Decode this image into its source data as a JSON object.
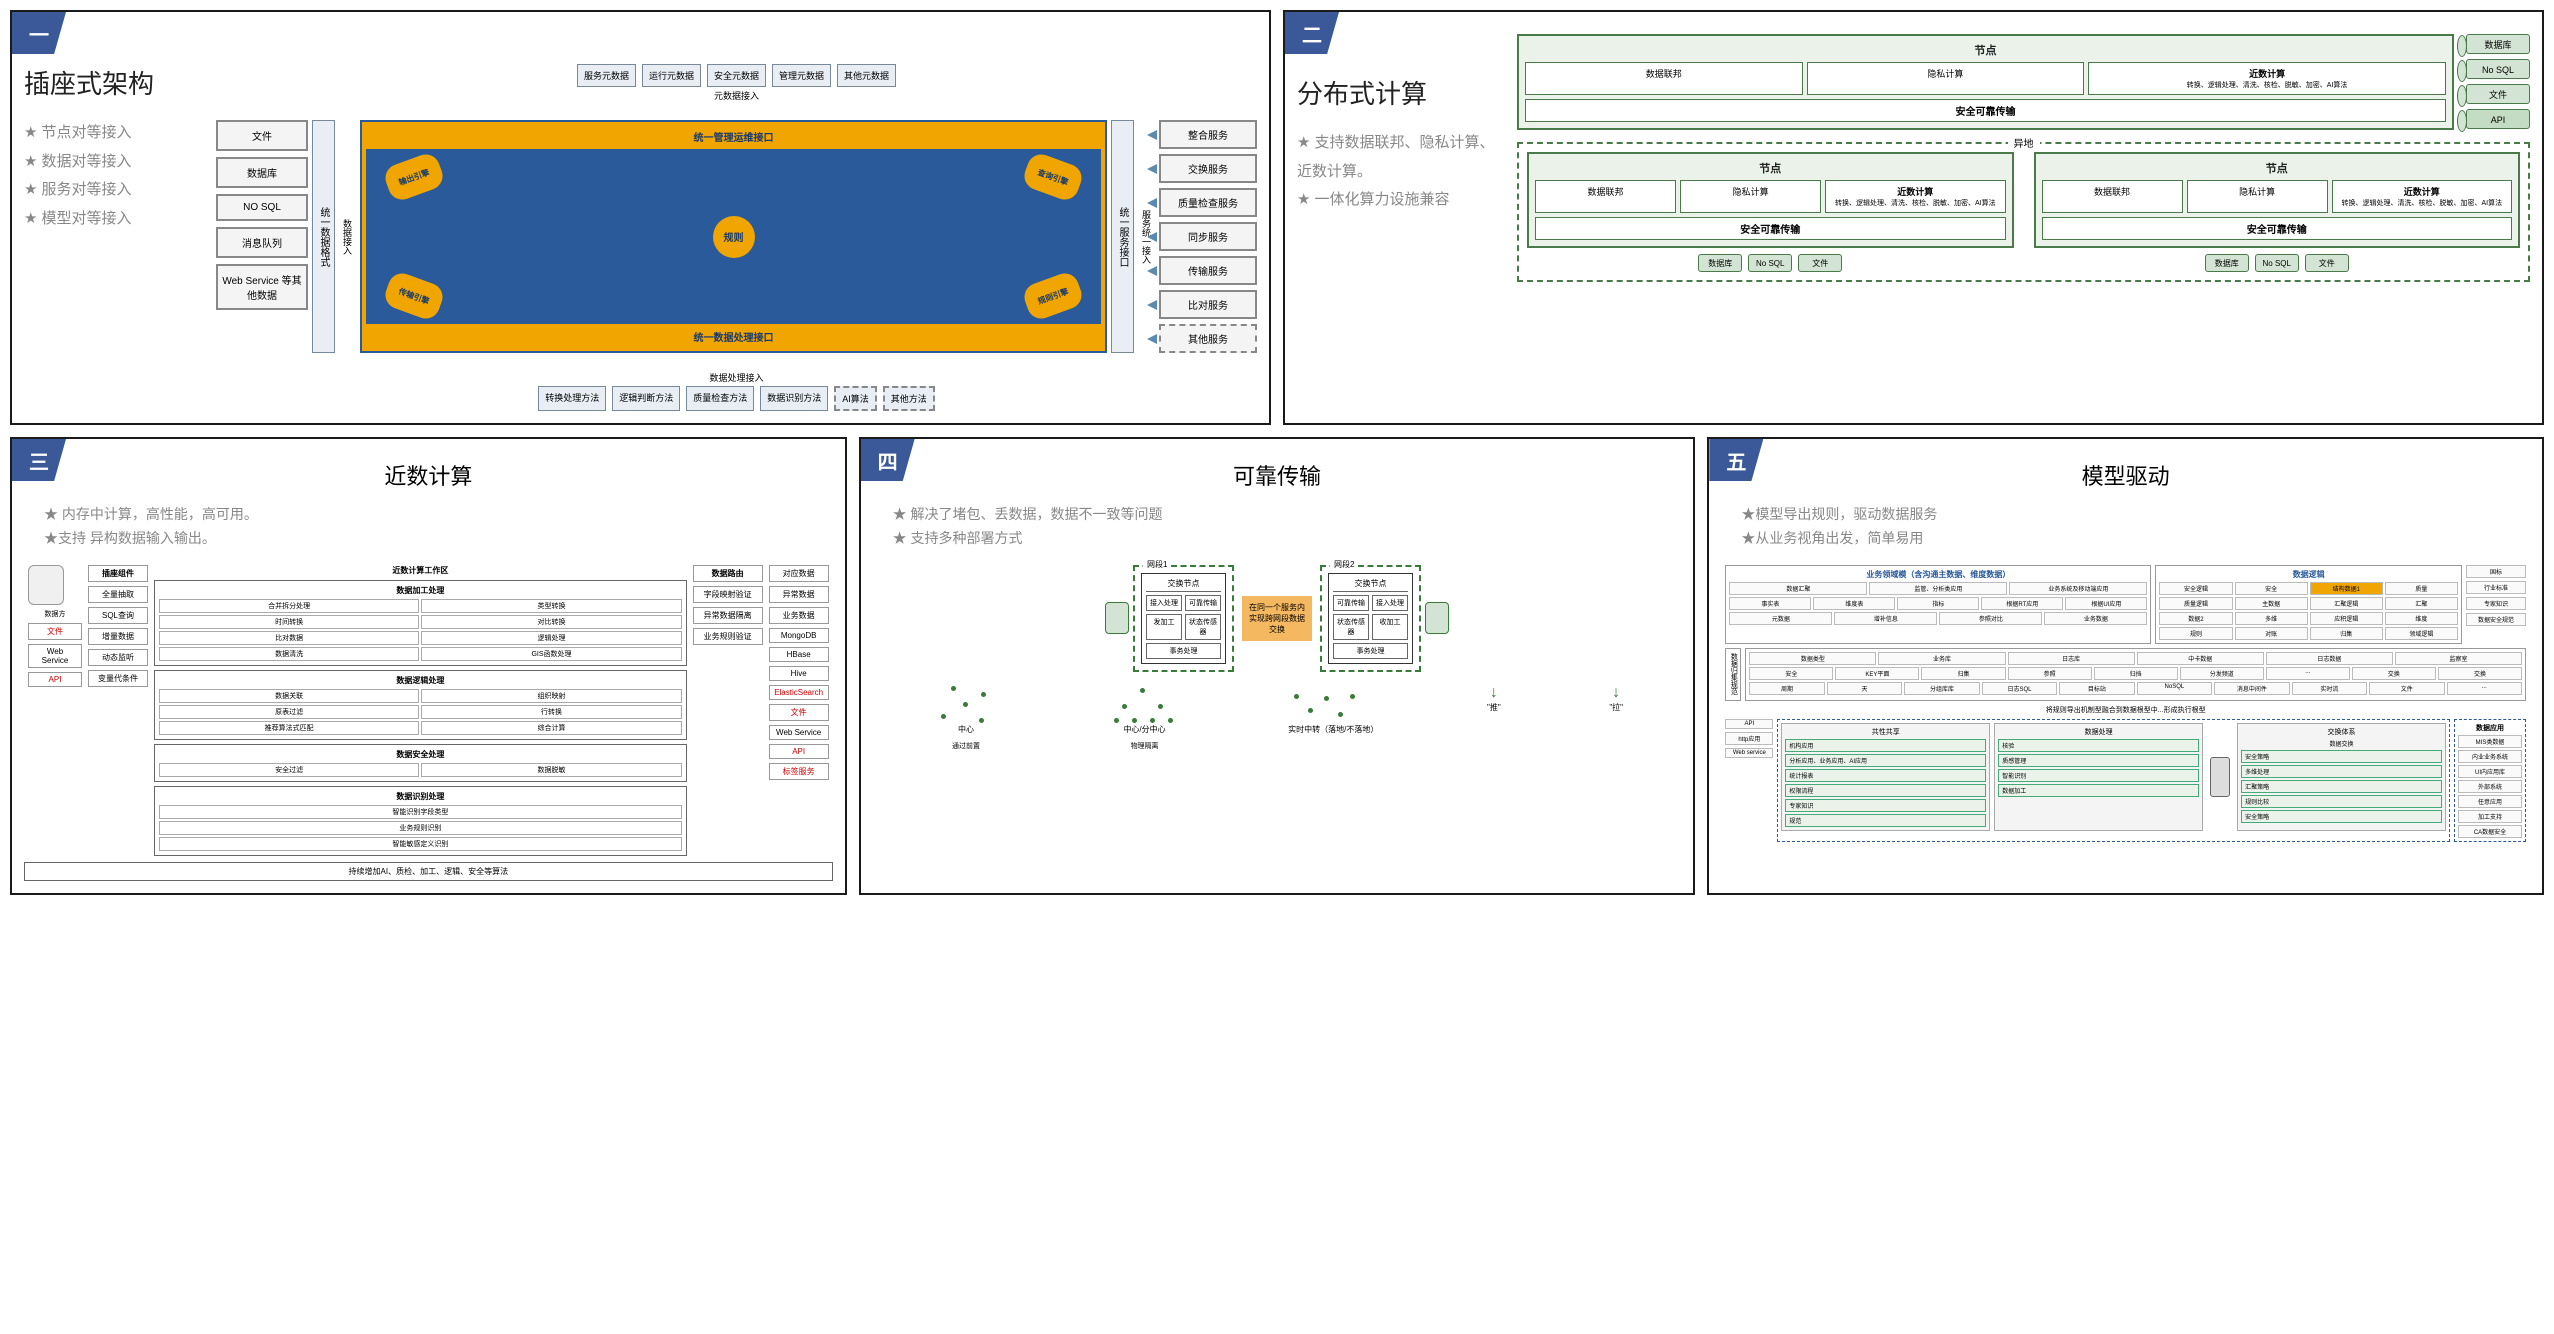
{
  "colors": {
    "corner": "#3b5998",
    "panel_border": "#1a1a1a",
    "accent_orange": "#f0a500",
    "accent_blue": "#2a5a9a",
    "accent_green": "#4a7a4a",
    "grey_text": "#888888"
  },
  "panel1": {
    "num": "一",
    "title": "插座式架构",
    "bullets": [
      "节点对等接入",
      "数据对等接入",
      "服务对等接入",
      "模型对等接入"
    ],
    "top_boxes": [
      "服务元数据",
      "运行元数据",
      "安全元数据",
      "管理元数据",
      "其他元数据"
    ],
    "top_label": "元数据接入",
    "left_boxes": [
      "文件",
      "数据库",
      "NO SQL",
      "消息队列",
      "Web Service 等其他数据"
    ],
    "left_vert1": "统一数据格式",
    "left_vert_label": "数据接入",
    "core_top": "统一管理运维接口",
    "core_center": "规则",
    "core_petals": [
      "输出引擎",
      "查询引擎",
      "传输引擎",
      "规则引擎"
    ],
    "core_bottom": "统一数据处理接口",
    "right_vert1": "统一服务接口",
    "right_vert_label": "服务统一接入",
    "right_boxes": [
      "整合服务",
      "交换服务",
      "质量检查服务",
      "同步服务",
      "传输服务",
      "比对服务",
      "其他服务"
    ],
    "bottom_boxes": [
      "转换处理方法",
      "逻辑判断方法",
      "质量检查方法",
      "数据识别方法",
      "AI算法",
      "其他方法"
    ],
    "bottom_label": "数据处理接入"
  },
  "panel2": {
    "num": "二",
    "title": "分布式计算",
    "bullets": [
      "支持数据联邦、隐私计算、近数计算。",
      "一体化算力设施兼容"
    ],
    "node_title": "节点",
    "node_cells": [
      "数据联邦",
      "隐私计算"
    ],
    "node_calc_title": "近数计算",
    "node_calc_desc": "转换、逻辑处理、清洗、核检、脱敏、加密、AI算法",
    "node_bar": "安全可靠传输",
    "side_cyls": [
      "数据库",
      "No SQL",
      "文件",
      "API"
    ],
    "remote_label": "异地",
    "bottom_cyls": [
      "数据库",
      "No SQL",
      "文件"
    ]
  },
  "panel3": {
    "num": "三",
    "title": "近数计算",
    "bullets": [
      "内存中计算，高性能，高可用。",
      "支持 异构数据输入输出。"
    ],
    "left_cyl": "数据方",
    "left_stack_title": "插座组件",
    "left_stack": [
      "全量抽取",
      "SQL查询",
      "增量数据",
      "动态监听",
      "变量代条件"
    ],
    "left_items": [
      "文件",
      "Web Service",
      "API"
    ],
    "mid_title": "近数计算工作区",
    "mid_groups": [
      {
        "t": "数据加工处理",
        "cells": [
          "合并拆分处理",
          "类型转换",
          "时间转换",
          "对比转换",
          "比对数据",
          "逻辑处理",
          "数据清洗",
          "GIS函数处理"
        ]
      },
      {
        "t": "数据逻辑处理",
        "cells": [
          "数据关联",
          "组织映射",
          "原表过滤",
          "行转换",
          "推荐算法式匹配",
          "综合计算"
        ]
      },
      {
        "t": "数据安全处理",
        "cells": [
          "安全过滤",
          "数据脱敏"
        ]
      },
      {
        "t": "数据识别处理",
        "cells": [
          "智能识别字段类型",
          "业务规则识别",
          "智能敏感定义识别"
        ]
      }
    ],
    "right_route_title": "数据路由",
    "right_route": [
      "字段映射验证",
      "异常数据隔离",
      "业务规则验证"
    ],
    "right_items": [
      "对应数据",
      "异常数据",
      "业务数据",
      "MongoDB",
      "HBase",
      "Hive",
      "ElasticSearch",
      "文件",
      "Web Service",
      "API",
      "标签服务"
    ],
    "bottom_bar": "持续增加AI、质检、加工、逻辑、安全等算法"
  },
  "panel4": {
    "num": "四",
    "title": "可靠传输",
    "bullets": [
      "解决了堵包、丢数据，数据不一致等问题",
      "支持多种部署方式"
    ],
    "zone1": "网段1",
    "zone2": "网段2",
    "exch_node": "交换节点",
    "node_cells_l": [
      "接入处理",
      "可靠传输",
      "发加工",
      "状态传感器",
      "事务处理"
    ],
    "mid_text": "在同一个服务内实现跨网段数据交换",
    "node_cells_r": [
      "可靠传输",
      "接入处理",
      "状态传感器",
      "收加工",
      "事务处理"
    ],
    "bot_labels": [
      "中心",
      "中心/分中心",
      "实时中转（落地/不落地）",
      "\"推\"",
      "\"拉\""
    ],
    "bot_sub1": "通过前置",
    "bot_sub2": "物理隔离"
  },
  "panel5": {
    "num": "五",
    "title": "模型驱动",
    "bullets": [
      "模型导出规则，驱动数据服务",
      "从业务视角出发，简单易用"
    ],
    "top_l_title": "业务领域模（含沟通主数据、维度数据）",
    "top_l_row1": [
      "数据汇聚",
      "监管、分析类应用",
      "业务系统及移动端应用"
    ],
    "top_l_row2": [
      "事实表",
      "维度表",
      "指标",
      "根据RT应用",
      "根据UI应用"
    ],
    "top_l_row3": [
      "元数据",
      "增补信息",
      "参照对比",
      "业务数据"
    ],
    "top_r_title": "数据逻辑",
    "top_r_cells": [
      "安全逻辑",
      "安全",
      "结构数据1",
      "质量",
      "质量逻辑",
      "主数据",
      "汇聚逻辑",
      "汇聚",
      "数据2",
      "多维",
      "应积逻辑",
      "维度",
      "规则",
      "对账",
      "归集",
      "领域逻辑"
    ],
    "top_side": [
      "国标",
      "行业标准",
      "专家知识",
      "数据安全规范"
    ],
    "mid_side": "数据归集规范",
    "mid_rows": [
      [
        "数据类型",
        "业务库",
        "日志库",
        "中卡数据",
        "日志数据",
        "监察室"
      ],
      [
        "安全",
        "KEY平面",
        "归集",
        "参照",
        "归挡",
        "分发频道",
        "...",
        "交换",
        "交换"
      ],
      [
        "周期",
        "天",
        "分组库库",
        "日志SQL",
        "目标站",
        "NoSQL",
        "消息中间件",
        "实时流",
        "文件",
        "..."
      ]
    ],
    "bot_label": "将规则导出机制型融合到数据根型中...形成执行根型",
    "api_boxes": [
      "API",
      "http应用",
      "Web service"
    ],
    "layer_titles": [
      "共性共享",
      "数据处理",
      "交换体系",
      "数据交换"
    ],
    "layer_l": [
      "机构应用",
      "分析应用、业务应用、AI应用",
      "统计报表",
      "权限流程",
      "专家知识",
      "规范"
    ],
    "layer_m": [
      "核验",
      "质感管理",
      "智能识别",
      "数据加工"
    ],
    "layer_r": [
      "安全策略",
      "多维处理",
      "汇聚策略",
      "规则比较",
      "安全策略"
    ],
    "right_stack_title": "数据应用",
    "right_stack": [
      "MIS类数据",
      "内业业务系统",
      "UI内应用库",
      "外部系统",
      "任意应用",
      "加工支持",
      "CA数据安全"
    ]
  }
}
